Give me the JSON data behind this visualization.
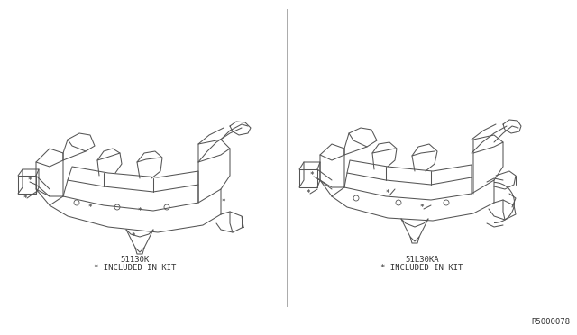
{
  "background_color": "#ffffff",
  "line_color": "#555555",
  "text_color": "#333333",
  "divider_color": "#999999",
  "left_label_part": "51130K",
  "left_label_kit": "* INCLUDED IN KIT",
  "right_label_part": "51L30KA",
  "right_label_kit": "* INCLUDED IN KIT",
  "ref_number": "R5000078",
  "label_fontsize": 6.5,
  "ref_fontsize": 6.5,
  "lw": 0.75
}
